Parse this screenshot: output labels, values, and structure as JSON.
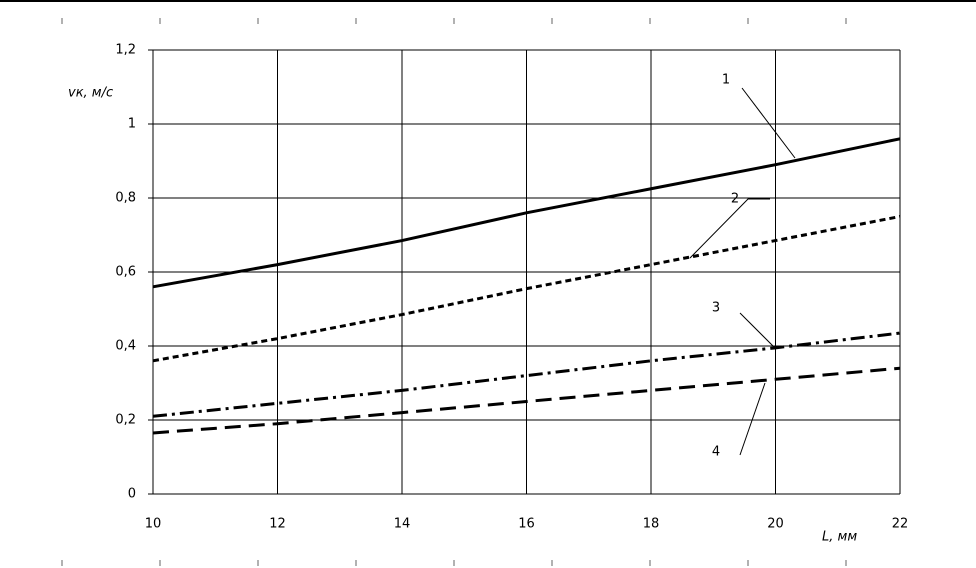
{
  "chart_data": {
    "type": "line",
    "xlabel": "L, мм",
    "ylabel": "vк, м/с",
    "x": [
      10,
      12,
      14,
      16,
      18,
      20,
      22
    ],
    "series": [
      {
        "name": "1",
        "color": "#000000",
        "dash": "solid",
        "values": [
          0.56,
          0.62,
          0.685,
          0.76,
          0.825,
          0.89,
          0.96
        ]
      },
      {
        "name": "2",
        "color": "#000000",
        "dash": "short",
        "values": [
          0.36,
          0.42,
          0.485,
          0.555,
          0.62,
          0.685,
          0.75
        ]
      },
      {
        "name": "3",
        "color": "#000000",
        "dash": "dashdot",
        "values": [
          0.21,
          0.245,
          0.28,
          0.32,
          0.36,
          0.395,
          0.435
        ]
      },
      {
        "name": "4",
        "color": "#000000",
        "dash": "long",
        "values": [
          0.165,
          0.19,
          0.22,
          0.25,
          0.28,
          0.31,
          0.34
        ]
      }
    ],
    "xlim": [
      10,
      22
    ],
    "xticks": [
      10,
      12,
      14,
      16,
      18,
      20,
      22
    ],
    "ylim": [
      0,
      1.2
    ],
    "yticks": [
      0,
      {
        "value": 0.2,
        "label": "0,2"
      },
      {
        "value": 0.4,
        "label": "0,4"
      },
      {
        "value": 0.6,
        "label": "0,6"
      },
      {
        "value": 0.8,
        "label": "0,8"
      },
      1,
      {
        "value": 1.2,
        "label": "1,2"
      }
    ],
    "grid": true
  }
}
